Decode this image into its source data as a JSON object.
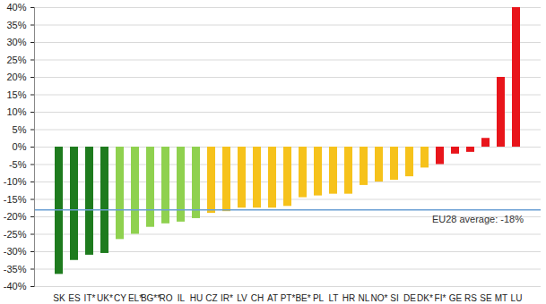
{
  "chart_data": {
    "type": "bar",
    "categories": [
      "SK",
      "ES",
      "IT*",
      "UK*",
      "CY",
      "EL*",
      "BG**",
      "RO",
      "IL",
      "HU",
      "CZ",
      "IR*",
      "LV",
      "CH",
      "AT",
      "PT*",
      "BE*",
      "PL",
      "LT",
      "HR",
      "NL",
      "NO*",
      "SI",
      "DE",
      "DK*",
      "FI*",
      "GE",
      "RS",
      "SE",
      "MT",
      "LU"
    ],
    "values": [
      -36.5,
      -32.5,
      -31,
      -30.5,
      -26.5,
      -25,
      -23,
      -22,
      -21.5,
      -20.5,
      -19,
      -18.5,
      -17.5,
      -17.5,
      -17.5,
      -17,
      -14.5,
      -14,
      -13.5,
      -13.5,
      -11,
      -10,
      -9.5,
      -8.5,
      -6,
      -5,
      -2,
      -1.5,
      2.5,
      20,
      40
    ],
    "colors": [
      "#1e7b1e",
      "#1e7b1e",
      "#1e7b1e",
      "#1e7b1e",
      "#8fd14f",
      "#8fd14f",
      "#8fd14f",
      "#8fd14f",
      "#8fd14f",
      "#8fd14f",
      "#f6c21b",
      "#f6c21b",
      "#f6c21b",
      "#f6c21b",
      "#f6c21b",
      "#f6c21b",
      "#f6c21b",
      "#f6c21b",
      "#f6c21b",
      "#f6c21b",
      "#f6c21b",
      "#f6c21b",
      "#f6c21b",
      "#f6c21b",
      "#f6c21b",
      "#e8151b",
      "#e8151b",
      "#e8151b",
      "#e8151b",
      "#e8151b",
      "#e8151b"
    ],
    "ylim": [
      -40,
      40
    ],
    "yticks": [
      {
        "value": -40,
        "label": "-40%"
      },
      {
        "value": -35,
        "label": "-35%"
      },
      {
        "value": -30,
        "label": "-30%"
      },
      {
        "value": -25,
        "label": "-25%"
      },
      {
        "value": -20,
        "label": "-20%"
      },
      {
        "value": -15,
        "label": "-15%"
      },
      {
        "value": -10,
        "label": "-10%"
      },
      {
        "value": -5,
        "label": "-5%"
      },
      {
        "value": 0,
        "label": "0%"
      },
      {
        "value": 5,
        "label": "5%"
      },
      {
        "value": 10,
        "label": "10%"
      },
      {
        "value": 15,
        "label": "15%"
      },
      {
        "value": 20,
        "label": "20%"
      },
      {
        "value": 25,
        "label": "25%"
      },
      {
        "value": 30,
        "label": "30%"
      },
      {
        "value": 35,
        "label": "35%"
      },
      {
        "value": 40,
        "label": "40%"
      }
    ],
    "grid": true,
    "reference_line": {
      "value": -18,
      "label": "EU28 average: -18%",
      "color": "#6a9fd4"
    }
  }
}
